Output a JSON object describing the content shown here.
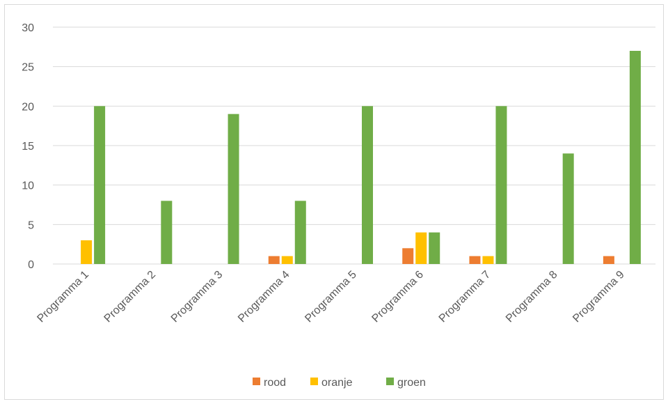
{
  "chart_data": {
    "type": "bar",
    "categories": [
      "Programma 1",
      "Programma 2",
      "Programma 3",
      "Programma 4",
      "Programma 5",
      "Programma 6",
      "Programma 7",
      "Programma 8",
      "Programma 9"
    ],
    "series": [
      {
        "name": "rood",
        "color": "#ed7d31",
        "values": [
          0,
          0,
          0,
          1,
          0,
          2,
          1,
          0,
          1
        ]
      },
      {
        "name": "oranje",
        "color": "#ffc000",
        "values": [
          3,
          0,
          0,
          1,
          0,
          4,
          1,
          0,
          0
        ]
      },
      {
        "name": "groen",
        "color": "#70ad47",
        "values": [
          20,
          8,
          19,
          8,
          20,
          4,
          20,
          14,
          27
        ]
      }
    ],
    "ylim": [
      0,
      30
    ],
    "yticks": [
      0,
      5,
      10,
      15,
      20,
      25,
      30
    ],
    "grid": true,
    "gridColor": "#d9d9d9",
    "legend": "bottom"
  }
}
